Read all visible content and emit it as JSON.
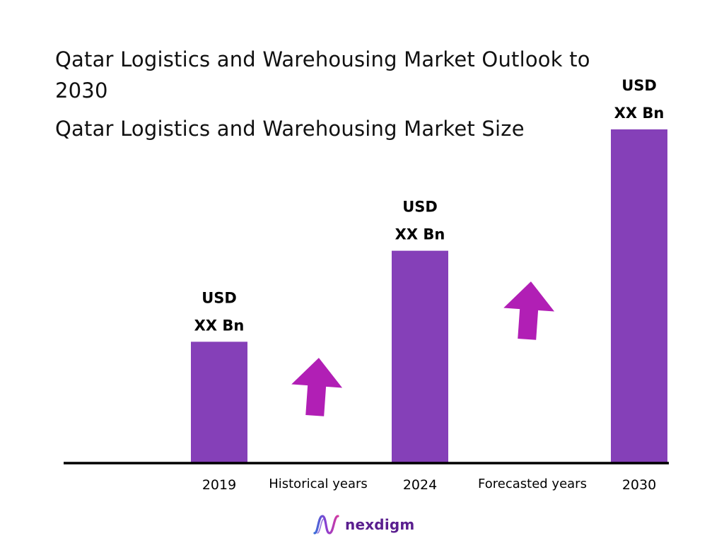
{
  "title": "Qatar Logistics and Warehousing Market Outlook to 2030",
  "subtitle": "Qatar Logistics and Warehousing Market Size",
  "colors": {
    "bar": "#8540b8",
    "arrow": "#b11fb5",
    "axis": "#000000",
    "logo": "#5a1f8f"
  },
  "chart_data": {
    "type": "bar",
    "categories": [
      "2019",
      "2024",
      "2030"
    ],
    "values": [
      1.0,
      1.75,
      2.75
    ],
    "value_unit": "relative (values not disclosed)",
    "value_labels": [
      [
        "USD",
        "XX Bn"
      ],
      [
        "USD",
        "XX Bn"
      ],
      [
        "USD",
        "XX Bn"
      ]
    ],
    "period_labels": [
      "Historical years",
      "Forecasted years"
    ],
    "trend_arrows": [
      "up",
      "up"
    ],
    "ylim": [
      0,
      3
    ],
    "grid": false,
    "legend": "none"
  },
  "logo": {
    "name": "nexdigm",
    "icon": "nexdigm-wave-icon"
  }
}
